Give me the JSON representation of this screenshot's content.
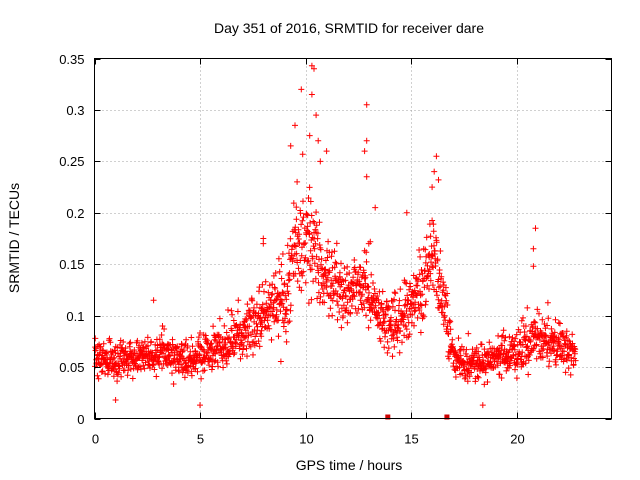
{
  "chart_data": {
    "type": "scatter",
    "title": "Day 351 of 2016, SRMTID for receiver dare",
    "xlabel": "GPS time / hours",
    "ylabel": "SRMTID / TECUs",
    "xlim": [
      0,
      24.5
    ],
    "ylim": [
      0,
      0.35
    ],
    "xticks": [
      0,
      5,
      10,
      15,
      20
    ],
    "xtick_labels": [
      "0",
      "5",
      "10",
      "15",
      "20"
    ],
    "yticks": [
      0,
      0.05,
      0.1,
      0.15,
      0.2,
      0.25,
      0.3,
      0.35
    ],
    "ytick_labels": [
      "0",
      "0.05",
      "0.1",
      "0.15",
      "0.2",
      "0.25",
      "0.3",
      "0.35"
    ],
    "grid": true,
    "marker": "+",
    "color": "#ff0000",
    "gap_markers_x": [
      13.9,
      16.7
    ],
    "series": [
      {
        "name": "SRMTID",
        "trend_x": [
          0,
          1,
          2,
          3,
          4,
          5,
          6,
          7,
          8,
          9,
          9.5,
          10,
          10.5,
          11,
          11.5,
          12,
          12.5,
          13,
          13.5,
          14,
          14.5,
          15,
          15.5,
          16,
          16.5,
          17,
          17.5,
          18,
          19,
          20,
          21,
          22,
          22.8
        ],
        "trend_y": [
          0.06,
          0.055,
          0.06,
          0.062,
          0.058,
          0.06,
          0.07,
          0.085,
          0.1,
          0.12,
          0.16,
          0.18,
          0.16,
          0.14,
          0.13,
          0.12,
          0.13,
          0.12,
          0.1,
          0.09,
          0.1,
          0.11,
          0.12,
          0.16,
          0.12,
          0.06,
          0.055,
          0.055,
          0.06,
          0.065,
          0.08,
          0.07,
          0.065
        ],
        "spread_y": [
          0.02,
          0.02,
          0.02,
          0.02,
          0.02,
          0.022,
          0.025,
          0.03,
          0.035,
          0.05,
          0.06,
          0.07,
          0.05,
          0.04,
          0.04,
          0.04,
          0.04,
          0.04,
          0.03,
          0.03,
          0.035,
          0.04,
          0.045,
          0.05,
          0.04,
          0.02,
          0.02,
          0.022,
          0.022,
          0.025,
          0.03,
          0.025,
          0.02
        ],
        "highlights": [
          {
            "x": 10.3,
            "y": 0.343
          },
          {
            "x": 10.4,
            "y": 0.34
          },
          {
            "x": 9.8,
            "y": 0.32
          },
          {
            "x": 10.3,
            "y": 0.315
          },
          {
            "x": 12.9,
            "y": 0.305
          },
          {
            "x": 10.5,
            "y": 0.295
          },
          {
            "x": 9.5,
            "y": 0.285
          },
          {
            "x": 10.2,
            "y": 0.275
          },
          {
            "x": 10.6,
            "y": 0.27
          },
          {
            "x": 12.9,
            "y": 0.27
          },
          {
            "x": 9.3,
            "y": 0.265
          },
          {
            "x": 11.0,
            "y": 0.26
          },
          {
            "x": 12.8,
            "y": 0.26
          },
          {
            "x": 16.2,
            "y": 0.255
          },
          {
            "x": 10.7,
            "y": 0.25
          },
          {
            "x": 16.1,
            "y": 0.24
          },
          {
            "x": 12.9,
            "y": 0.235
          },
          {
            "x": 16.3,
            "y": 0.232
          },
          {
            "x": 9.6,
            "y": 0.23
          },
          {
            "x": 16.0,
            "y": 0.225
          },
          {
            "x": 13.3,
            "y": 0.205
          },
          {
            "x": 14.8,
            "y": 0.2
          },
          {
            "x": 20.9,
            "y": 0.185
          },
          {
            "x": 20.8,
            "y": 0.165
          },
          {
            "x": 8.0,
            "y": 0.175
          },
          {
            "x": 8.0,
            "y": 0.17
          },
          {
            "x": 20.8,
            "y": 0.148
          },
          {
            "x": 2.8,
            "y": 0.115
          },
          {
            "x": 5.0,
            "y": 0.013
          },
          {
            "x": 1.0,
            "y": 0.018
          },
          {
            "x": 18.4,
            "y": 0.013
          },
          {
            "x": 7.9,
            "y": 0.08
          },
          {
            "x": 13.0,
            "y": 0.17
          }
        ]
      }
    ]
  }
}
